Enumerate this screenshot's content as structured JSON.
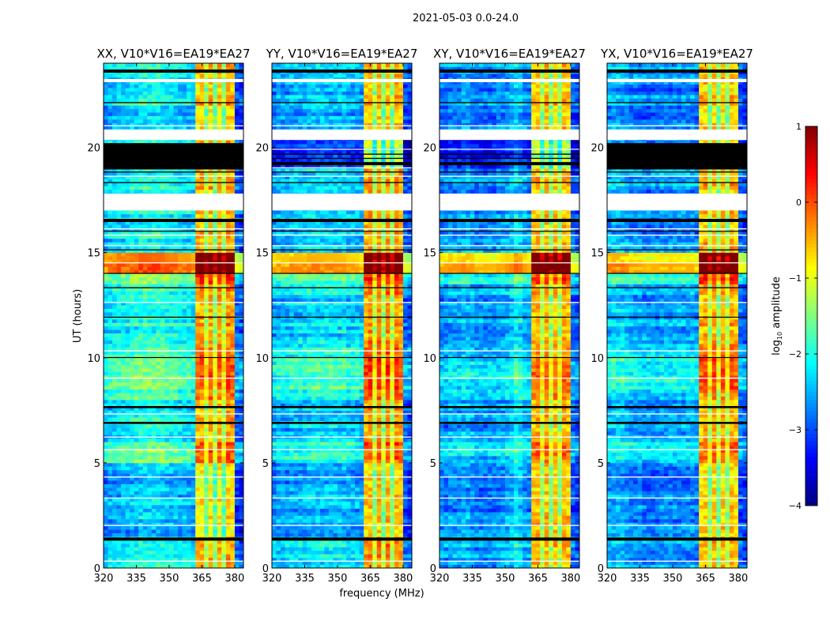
{
  "chart_data": {
    "type": "heatmap",
    "suptitle": "2021-05-03 0.0-24.0",
    "xlabel": "frequency (MHz)",
    "ylabel": "UT (hours)",
    "xlim": [
      320,
      384
    ],
    "ylim": [
      0,
      24
    ],
    "xticks": [
      "320",
      "335",
      "350",
      "365",
      "380"
    ],
    "xtick_values": [
      320,
      335,
      350,
      365,
      380
    ],
    "yticks": [
      "0",
      "5",
      "10",
      "15",
      "20"
    ],
    "ytick_values": [
      0,
      5,
      10,
      15,
      20
    ],
    "freq_bin_mhz": 2,
    "time_bin_hours": 0.5,
    "colorbar": {
      "label": "log10 amplitude",
      "label_main": "log",
      "label_sub": "10",
      "label_rest": " amplitude",
      "colormap": "jet",
      "range": [
        -4,
        1
      ],
      "ticks": [
        "1",
        "0",
        "−1",
        "−2",
        "−3",
        "−4"
      ],
      "tick_values": [
        1,
        0,
        -1,
        -2,
        -3,
        -4
      ]
    },
    "shared_white_bands": [
      [
        17.0,
        17.8
      ],
      [
        20.35,
        20.85
      ],
      [
        23.1,
        23.25
      ],
      [
        21.0,
        21.05
      ],
      [
        5.6,
        5.65
      ],
      [
        10.3,
        10.35
      ],
      [
        9.0,
        9.05
      ],
      [
        3.3,
        3.35
      ],
      [
        2.0,
        2.05
      ],
      [
        0.3,
        0.35
      ],
      [
        12.6,
        12.65
      ],
      [
        15.8,
        15.85
      ],
      [
        18.6,
        18.65
      ],
      [
        6.2,
        6.25
      ],
      [
        4.3,
        4.35
      ],
      [
        7.3,
        7.35
      ],
      [
        16.1,
        16.15
      ],
      [
        15.3,
        15.35
      ],
      [
        14.5,
        14.53
      ]
    ],
    "shared_black_bands": [
      [
        23.55,
        23.7
      ],
      [
        1.3,
        1.45
      ],
      [
        16.45,
        16.6
      ],
      [
        7.6,
        7.7
      ],
      [
        6.85,
        6.95
      ],
      [
        11.9,
        11.95
      ],
      [
        13.3,
        13.35
      ],
      [
        22.1,
        22.15
      ],
      [
        18.3,
        18.35
      ],
      [
        14.0,
        14.03
      ],
      [
        10.0,
        10.03
      ],
      [
        15.1,
        15.15
      ],
      [
        16.0,
        16.03
      ],
      [
        18.8,
        18.85
      ]
    ],
    "panels": [
      {
        "title": "XX, V10*V16=EA19*EA27",
        "freq_profile": [
          -2.4,
          -2.3,
          -2.3,
          -2.2,
          -2.2,
          -2.2,
          -2.1,
          -2.1,
          -2.0,
          -2.0,
          -2.0,
          -2.0,
          -2.0,
          -2.0,
          -2.1,
          -2.1,
          -2.1,
          -2.2,
          -2.2,
          -2.2,
          -2.3,
          -0.6,
          -0.5,
          -1.3,
          -0.5,
          -1.4,
          -0.5,
          -1.3,
          -0.4,
          -0.5,
          -2.9,
          -3.0
        ],
        "time_offset": [
          0,
          0,
          0.1,
          -0.4,
          -0.3,
          -0.4,
          -0.3,
          -0.4,
          -0.4,
          -0.4,
          0.4,
          0.5,
          0,
          0,
          0.1,
          0,
          0.3,
          0.4,
          0.5,
          0.5,
          0.4,
          0.2,
          0,
          0.1,
          0,
          0,
          0.2,
          0.8,
          2.3,
          2.0,
          0.1,
          0,
          -0.1,
          0,
          0,
          -0.1,
          0.1,
          0.1,
          0,
          0,
          0,
          0,
          -0.2,
          -0.3,
          0.1,
          -0.2,
          0,
          0
        ],
        "extra_black_bands": [
          [
            18.95,
            20.2
          ]
        ],
        "extra_white_bands": []
      },
      {
        "title": "YY, V10*V16=EA19*EA27",
        "freq_profile": [
          -2.6,
          -2.5,
          -2.5,
          -2.5,
          -2.4,
          -2.4,
          -2.4,
          -2.4,
          -2.3,
          -2.3,
          -2.3,
          -2.3,
          -2.3,
          -2.3,
          -2.3,
          -2.3,
          -2.3,
          -2.4,
          -2.4,
          -2.4,
          -2.5,
          -0.5,
          -0.4,
          -1.3,
          -0.4,
          -1.4,
          -0.4,
          -1.3,
          -0.4,
          -0.5,
          -2.9,
          -3.0
        ],
        "time_offset": [
          0.1,
          0.1,
          0.2,
          -0.2,
          -0.1,
          -0.2,
          -0.1,
          -0.2,
          -0.2,
          -0.2,
          0.4,
          0.5,
          0,
          0,
          0.1,
          0,
          0.4,
          0.5,
          0.6,
          0.6,
          0.4,
          0.2,
          0,
          0.1,
          0,
          0,
          0.2,
          0.6,
          2.2,
          1.9,
          0.1,
          0,
          -0.1,
          0,
          0,
          -0.1,
          0.1,
          0.1,
          -0.8,
          -0.9,
          -0.8,
          0,
          -0.2,
          -0.3,
          0.1,
          -0.2,
          0,
          0
        ],
        "extra_black_bands": [
          [
            19.15,
            19.3
          ],
          [
            19.45,
            19.5
          ],
          [
            19.65,
            19.7
          ]
        ],
        "extra_white_bands": [
          [
            19.0,
            19.05
          ],
          [
            19.9,
            19.93
          ]
        ]
      },
      {
        "title": "XY, V10*V16=EA19*EA27",
        "freq_profile": [
          -2.7,
          -2.7,
          -2.6,
          -2.6,
          -2.6,
          -2.5,
          -2.5,
          -2.6,
          -2.7,
          -2.7,
          -2.7,
          -2.7,
          -2.7,
          -2.6,
          -2.6,
          -2.5,
          -2.4,
          -2.2,
          -2.3,
          -2.5,
          -2.6,
          -0.6,
          -0.5,
          -1.3,
          -0.5,
          -1.4,
          -0.6,
          -1.3,
          -0.5,
          -0.6,
          -2.9,
          -3.0
        ],
        "time_offset": [
          0,
          0,
          0.1,
          -0.1,
          0,
          -0.1,
          0,
          -0.1,
          -0.1,
          -0.1,
          0.3,
          0.4,
          0,
          0,
          0.1,
          0,
          0.3,
          0.4,
          0.4,
          0.4,
          0.3,
          0.2,
          0,
          0.1,
          0,
          0,
          0.2,
          0.7,
          2.3,
          2.0,
          0.1,
          0,
          -0.1,
          0,
          0,
          -0.1,
          0.1,
          0.1,
          -0.7,
          -0.8,
          -0.7,
          0,
          -0.1,
          -0.2,
          0.1,
          -0.1,
          0,
          0
        ],
        "extra_black_bands": [
          [
            19.15,
            19.3
          ],
          [
            19.45,
            19.5
          ],
          [
            19.65,
            19.7
          ]
        ],
        "extra_white_bands": [
          [
            19.9,
            19.93
          ]
        ]
      },
      {
        "title": "YX, V10*V16=EA19*EA27",
        "freq_profile": [
          -2.5,
          -2.4,
          -2.4,
          -2.4,
          -2.5,
          -2.6,
          -2.6,
          -2.6,
          -2.7,
          -2.7,
          -2.7,
          -2.7,
          -2.6,
          -2.6,
          -2.6,
          -2.6,
          -2.6,
          -2.6,
          -2.6,
          -2.6,
          -2.7,
          -0.6,
          -0.5,
          -1.3,
          -0.5,
          -1.4,
          -0.5,
          -1.3,
          -0.5,
          -0.6,
          -2.9,
          -3.0
        ],
        "time_offset": [
          0,
          0,
          0.1,
          -0.2,
          -0.1,
          -0.2,
          -0.1,
          -0.2,
          -0.2,
          -0.2,
          0.4,
          0.5,
          0,
          0,
          0.1,
          0,
          0.3,
          0.5,
          0.5,
          0.5,
          0.4,
          0.2,
          0,
          0.1,
          0,
          0,
          0.2,
          0.7,
          2.3,
          2.0,
          0.1,
          0,
          -0.1,
          0,
          0,
          -0.1,
          0.1,
          0.1,
          0,
          0,
          0,
          0,
          -0.2,
          -0.3,
          0.1,
          -0.2,
          0,
          0
        ],
        "extra_black_bands": [
          [
            18.95,
            20.2
          ]
        ],
        "extra_white_bands": []
      }
    ]
  }
}
